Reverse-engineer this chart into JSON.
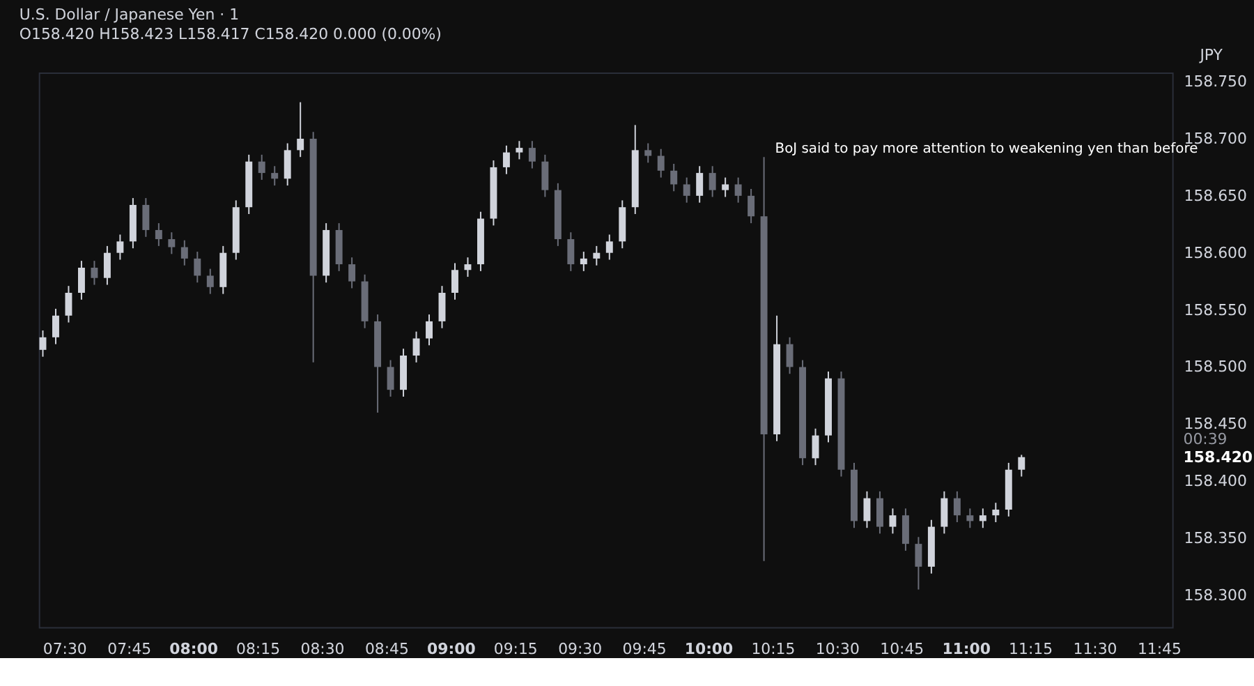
{
  "chart_data": {
    "type": "candlestick",
    "title": "U.S. Dollar / Japanese Yen · 1",
    "subtitle": "O158.420  H158.423  L158.417  C158.420  0.000 (0.00%)",
    "ylabel": "JPY",
    "x": [
      7.4167,
      7.4667,
      7.5167,
      7.5667,
      7.6167,
      7.6667,
      7.7167,
      7.7667,
      7.8167,
      7.8667,
      7.9167,
      7.9667,
      8.0167,
      8.0667,
      8.1167,
      8.1667,
      8.2167,
      8.2667,
      8.3167,
      8.3667,
      8.4167,
      8.4667,
      8.5167,
      8.5667,
      8.6167,
      8.6667,
      8.7167,
      8.7667,
      8.8167,
      8.8667,
      8.9167,
      8.9667,
      9.0167,
      9.0667,
      9.1167,
      9.1667,
      9.2167,
      9.2667,
      9.3167,
      9.3667,
      9.4167,
      9.4667,
      9.5167,
      9.5667,
      9.6167,
      9.6667,
      9.7167,
      9.7667,
      9.8167,
      9.8667,
      9.9167,
      9.9667,
      10.0167,
      10.0667,
      10.1167,
      10.1667,
      10.2167,
      10.2667,
      10.3167,
      10.3667,
      10.4167,
      10.4667,
      10.5167,
      10.5667,
      10.6167,
      10.6667,
      10.7167,
      10.7667,
      10.8167,
      10.8667,
      10.9167,
      10.9667,
      11.0167,
      11.0667,
      11.1167,
      11.1667,
      11.2167
    ],
    "ohlc": [
      [
        158.515,
        158.532,
        158.509,
        158.526
      ],
      [
        158.526,
        158.551,
        158.52,
        158.545
      ],
      [
        158.545,
        158.571,
        158.539,
        158.565
      ],
      [
        158.565,
        158.593,
        158.559,
        158.587
      ],
      [
        158.587,
        158.593,
        158.572,
        158.578
      ],
      [
        158.578,
        158.606,
        158.572,
        158.6
      ],
      [
        158.6,
        158.616,
        158.594,
        158.61
      ],
      [
        158.61,
        158.648,
        158.604,
        158.642
      ],
      [
        158.642,
        158.648,
        158.614,
        158.62
      ],
      [
        158.62,
        158.626,
        158.606,
        158.612
      ],
      [
        158.612,
        158.618,
        158.599,
        158.605
      ],
      [
        158.605,
        158.611,
        158.589,
        158.595
      ],
      [
        158.595,
        158.601,
        158.574,
        158.58
      ],
      [
        158.58,
        158.586,
        158.564,
        158.57
      ],
      [
        158.57,
        158.606,
        158.564,
        158.6
      ],
      [
        158.6,
        158.646,
        158.594,
        158.64
      ],
      [
        158.64,
        158.686,
        158.634,
        158.68
      ],
      [
        158.68,
        158.686,
        158.664,
        158.67
      ],
      [
        158.67,
        158.676,
        158.659,
        158.665
      ],
      [
        158.665,
        158.696,
        158.659,
        158.69
      ],
      [
        158.69,
        158.732,
        158.684,
        158.7
      ],
      [
        158.7,
        158.706,
        158.504,
        158.58
      ],
      [
        158.58,
        158.626,
        158.574,
        158.62
      ],
      [
        158.62,
        158.626,
        158.584,
        158.59
      ],
      [
        158.59,
        158.596,
        158.569,
        158.575
      ],
      [
        158.575,
        158.581,
        158.534,
        158.54
      ],
      [
        158.54,
        158.546,
        158.46,
        158.5
      ],
      [
        158.5,
        158.506,
        158.474,
        158.48
      ],
      [
        158.48,
        158.516,
        158.474,
        158.51
      ],
      [
        158.51,
        158.531,
        158.504,
        158.525
      ],
      [
        158.525,
        158.546,
        158.519,
        158.54
      ],
      [
        158.54,
        158.571,
        158.534,
        158.565
      ],
      [
        158.565,
        158.591,
        158.559,
        158.585
      ],
      [
        158.585,
        158.596,
        158.579,
        158.59
      ],
      [
        158.59,
        158.636,
        158.584,
        158.63
      ],
      [
        158.63,
        158.681,
        158.624,
        158.675
      ],
      [
        158.675,
        158.694,
        158.669,
        158.688
      ],
      [
        158.688,
        158.698,
        158.682,
        158.692
      ],
      [
        158.692,
        158.698,
        158.674,
        158.68
      ],
      [
        158.68,
        158.686,
        158.649,
        158.655
      ],
      [
        158.655,
        158.661,
        158.606,
        158.612
      ],
      [
        158.612,
        158.618,
        158.584,
        158.59
      ],
      [
        158.59,
        158.601,
        158.584,
        158.595
      ],
      [
        158.595,
        158.606,
        158.589,
        158.6
      ],
      [
        158.6,
        158.616,
        158.594,
        158.61
      ],
      [
        158.61,
        158.646,
        158.604,
        158.64
      ],
      [
        158.64,
        158.712,
        158.634,
        158.69
      ],
      [
        158.69,
        158.696,
        158.679,
        158.685
      ],
      [
        158.685,
        158.691,
        158.666,
        158.672
      ],
      [
        158.672,
        158.678,
        158.654,
        158.66
      ],
      [
        158.66,
        158.666,
        158.644,
        158.65
      ],
      [
        158.65,
        158.676,
        158.644,
        158.67
      ],
      [
        158.67,
        158.676,
        158.649,
        158.655
      ],
      [
        158.655,
        158.666,
        158.649,
        158.66
      ],
      [
        158.66,
        158.666,
        158.644,
        158.65
      ],
      [
        158.65,
        158.656,
        158.626,
        158.632
      ],
      [
        158.632,
        158.684,
        158.33,
        158.441
      ],
      [
        158.441,
        158.545,
        158.435,
        158.52
      ],
      [
        158.52,
        158.526,
        158.494,
        158.5
      ],
      [
        158.5,
        158.506,
        158.414,
        158.42
      ],
      [
        158.42,
        158.446,
        158.414,
        158.44
      ],
      [
        158.44,
        158.496,
        158.434,
        158.49
      ],
      [
        158.49,
        158.496,
        158.404,
        158.41
      ],
      [
        158.41,
        158.416,
        158.359,
        158.365
      ],
      [
        158.365,
        158.391,
        158.359,
        158.385
      ],
      [
        158.385,
        158.391,
        158.354,
        158.36
      ],
      [
        158.36,
        158.376,
        158.354,
        158.37
      ],
      [
        158.37,
        158.376,
        158.339,
        158.345
      ],
      [
        158.345,
        158.351,
        158.305,
        158.325
      ],
      [
        158.325,
        158.366,
        158.319,
        158.36
      ],
      [
        158.36,
        158.391,
        158.354,
        158.385
      ],
      [
        158.385,
        158.391,
        158.364,
        158.37
      ],
      [
        158.37,
        158.376,
        158.359,
        158.365
      ],
      [
        158.365,
        158.376,
        158.359,
        158.37
      ],
      [
        158.37,
        158.381,
        158.364,
        158.375
      ],
      [
        158.375,
        158.416,
        158.369,
        158.41
      ],
      [
        158.41,
        158.423,
        158.404,
        158.421
      ]
    ],
    "colors": [
      "#d1d4dc",
      "#d1d4dc",
      "#d1d4dc",
      "#d1d4dc",
      "#6a6d78",
      "#d1d4dc",
      "#d1d4dc",
      "#d1d4dc",
      "#6a6d78",
      "#6a6d78",
      "#6a6d78",
      "#6a6d78",
      "#6a6d78",
      "#6a6d78",
      "#d1d4dc",
      "#d1d4dc",
      "#d1d4dc",
      "#6a6d78",
      "#6a6d78",
      "#d1d4dc",
      "#d1d4dc",
      "#6a6d78",
      "#d1d4dc",
      "#6a6d78",
      "#6a6d78",
      "#6a6d78",
      "#6a6d78",
      "#6a6d78",
      "#d1d4dc",
      "#d1d4dc",
      "#d1d4dc",
      "#d1d4dc",
      "#d1d4dc",
      "#d1d4dc",
      "#d1d4dc",
      "#d1d4dc",
      "#d1d4dc",
      "#d1d4dc",
      "#6a6d78",
      "#6a6d78",
      "#6a6d78",
      "#6a6d78",
      "#d1d4dc",
      "#d1d4dc",
      "#d1d4dc",
      "#d1d4dc",
      "#d1d4dc",
      "#6a6d78",
      "#6a6d78",
      "#6a6d78",
      "#6a6d78",
      "#d1d4dc",
      "#6a6d78",
      "#d1d4dc",
      "#6a6d78",
      "#6a6d78",
      "#6a6d78",
      "#d1d4dc",
      "#6a6d78",
      "#6a6d78",
      "#d1d4dc",
      "#d1d4dc",
      "#6a6d78",
      "#6a6d78",
      "#d1d4dc",
      "#6a6d78",
      "#d1d4dc",
      "#6a6d78",
      "#6a6d78",
      "#d1d4dc",
      "#d1d4dc",
      "#6a6d78",
      "#6a6d78",
      "#d1d4dc",
      "#d1d4dc",
      "#d1d4dc",
      "#d1d4dc"
    ],
    "xlim": [
      7.401,
      11.802
    ],
    "xticks": [
      {
        "value": 7.5,
        "label": "07:30"
      },
      {
        "value": 7.75,
        "label": "07:45"
      },
      {
        "value": 8,
        "label": "08:00"
      },
      {
        "value": 8.25,
        "label": "08:15"
      },
      {
        "value": 8.5,
        "label": "08:30"
      },
      {
        "value": 8.75,
        "label": "08:45"
      },
      {
        "value": 9,
        "label": "09:00"
      },
      {
        "value": 9.25,
        "label": "09:15"
      },
      {
        "value": 9.5,
        "label": "09:30"
      },
      {
        "value": 9.75,
        "label": "09:45"
      },
      {
        "value": 10,
        "label": "10:00"
      },
      {
        "value": 10.25,
        "label": "10:15"
      },
      {
        "value": 10.5,
        "label": "10:30"
      },
      {
        "value": 10.75,
        "label": "10:45"
      },
      {
        "value": 11,
        "label": "11:00"
      },
      {
        "value": 11.25,
        "label": "11:15"
      },
      {
        "value": 11.5,
        "label": "11:30"
      },
      {
        "value": 11.75,
        "label": "11:45"
      }
    ],
    "ylim": [
      158.272,
      158.758
    ],
    "yticks": [
      {
        "value": 158.3,
        "label": "158.300"
      },
      {
        "value": 158.35,
        "label": "158.350"
      },
      {
        "value": 158.4,
        "label": "158.400"
      },
      {
        "value": 158.45,
        "label": "158.450"
      },
      {
        "value": 158.5,
        "label": "158.500"
      },
      {
        "value": 158.55,
        "label": "158.550"
      },
      {
        "value": 158.6,
        "label": "158.600"
      },
      {
        "value": 158.65,
        "label": "158.650"
      },
      {
        "value": 158.7,
        "label": "158.700"
      },
      {
        "value": 158.75,
        "label": "158.750"
      }
    ],
    "annotations": [
      {
        "text": "BoJ said to pay more attention to weakening yen than before",
        "x": 10.2167,
        "y": 158.682
      },
      "158.420",
      "00:39"
    ],
    "grid": false
  }
}
